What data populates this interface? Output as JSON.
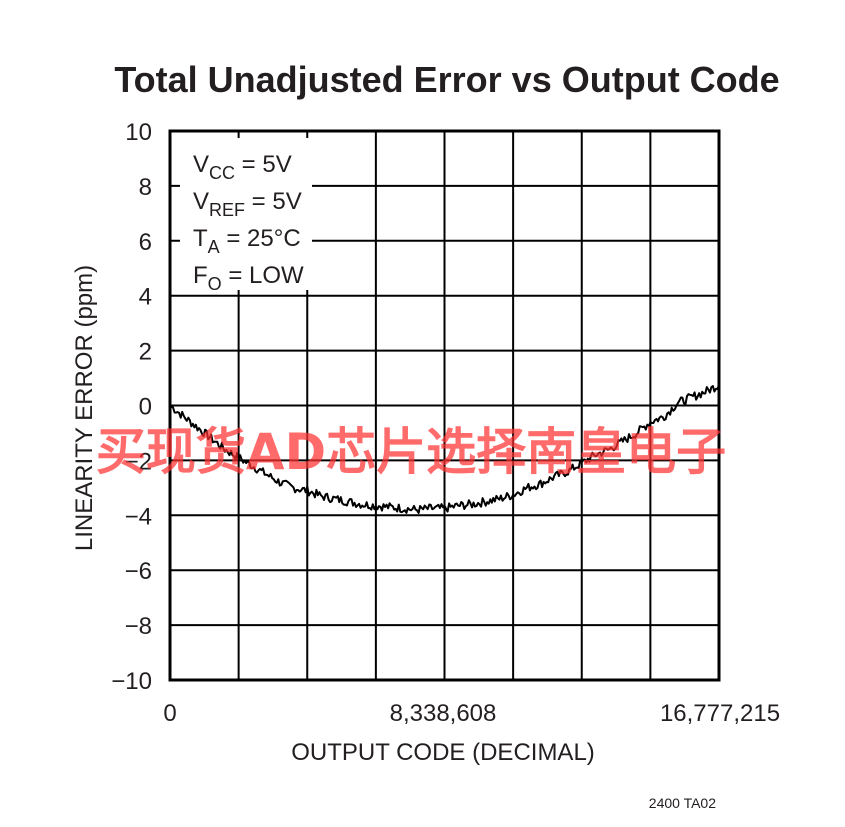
{
  "chart_data": {
    "type": "line",
    "title": "Total Unadjusted Error vs Output Code",
    "xlabel": "OUTPUT CODE (DECIMAL)",
    "ylabel": "LINEARITY ERROR (ppm)",
    "xlim": [
      0,
      16777215
    ],
    "ylim": [
      -10,
      10
    ],
    "x_ticks": [
      0,
      8338608,
      16777215
    ],
    "x_tick_labels": [
      "0",
      "8,338,608",
      "16,777,215"
    ],
    "y_ticks": [
      10,
      8,
      6,
      4,
      2,
      0,
      -2,
      -4,
      -6,
      -8,
      -10
    ],
    "y_tick_labels": [
      "10",
      "8",
      "6",
      "4",
      "2",
      "0",
      "−2",
      "−4",
      "−6",
      "−8",
      "−10"
    ],
    "x_grid_divisions": 8,
    "grid": true,
    "conditions": [
      {
        "main": "V",
        "sub": "CC",
        "rest": " = 5V"
      },
      {
        "main": "V",
        "sub": "REF",
        "rest": " = 5V"
      },
      {
        "main": "T",
        "sub": "A",
        "rest": " = 25°C"
      },
      {
        "main": "F",
        "sub": "O",
        "rest": " = LOW"
      }
    ],
    "series": [
      {
        "x": [
          0,
          419430,
          838861,
          1258291,
          1677722,
          2097152,
          2516582,
          2936013,
          3355443,
          3774874,
          4194304,
          4613734,
          5033165,
          5452595,
          5872026,
          6291456,
          6710886,
          7130317,
          7549747,
          7969178,
          8388608,
          8808038,
          9227469,
          9646899,
          10066330,
          10485760,
          10905190,
          11324621,
          11744051,
          12163482,
          12582912,
          13002342,
          13421773,
          13841203,
          14260634,
          14680064,
          15099494,
          15518925,
          15938355,
          16357786,
          16777215
        ],
        "y": [
          0,
          -0.4,
          -0.8,
          -1.2,
          -1.6,
          -1.9,
          -2.2,
          -2.5,
          -2.8,
          -3.0,
          -3.1,
          -3.3,
          -3.4,
          -3.5,
          -3.6,
          -3.65,
          -3.7,
          -3.75,
          -3.8,
          -3.75,
          -3.75,
          -3.65,
          -3.6,
          -3.5,
          -3.4,
          -3.25,
          -3.0,
          -2.85,
          -2.6,
          -2.4,
          -2.1,
          -1.8,
          -1.6,
          -1.3,
          -1.0,
          -0.6,
          -0.4,
          0.1,
          0.3,
          0.5,
          0.75
        ]
      }
    ]
  },
  "figure_code": "2400 TA02",
  "watermark": "买现货AD芯片选择南皇电子"
}
